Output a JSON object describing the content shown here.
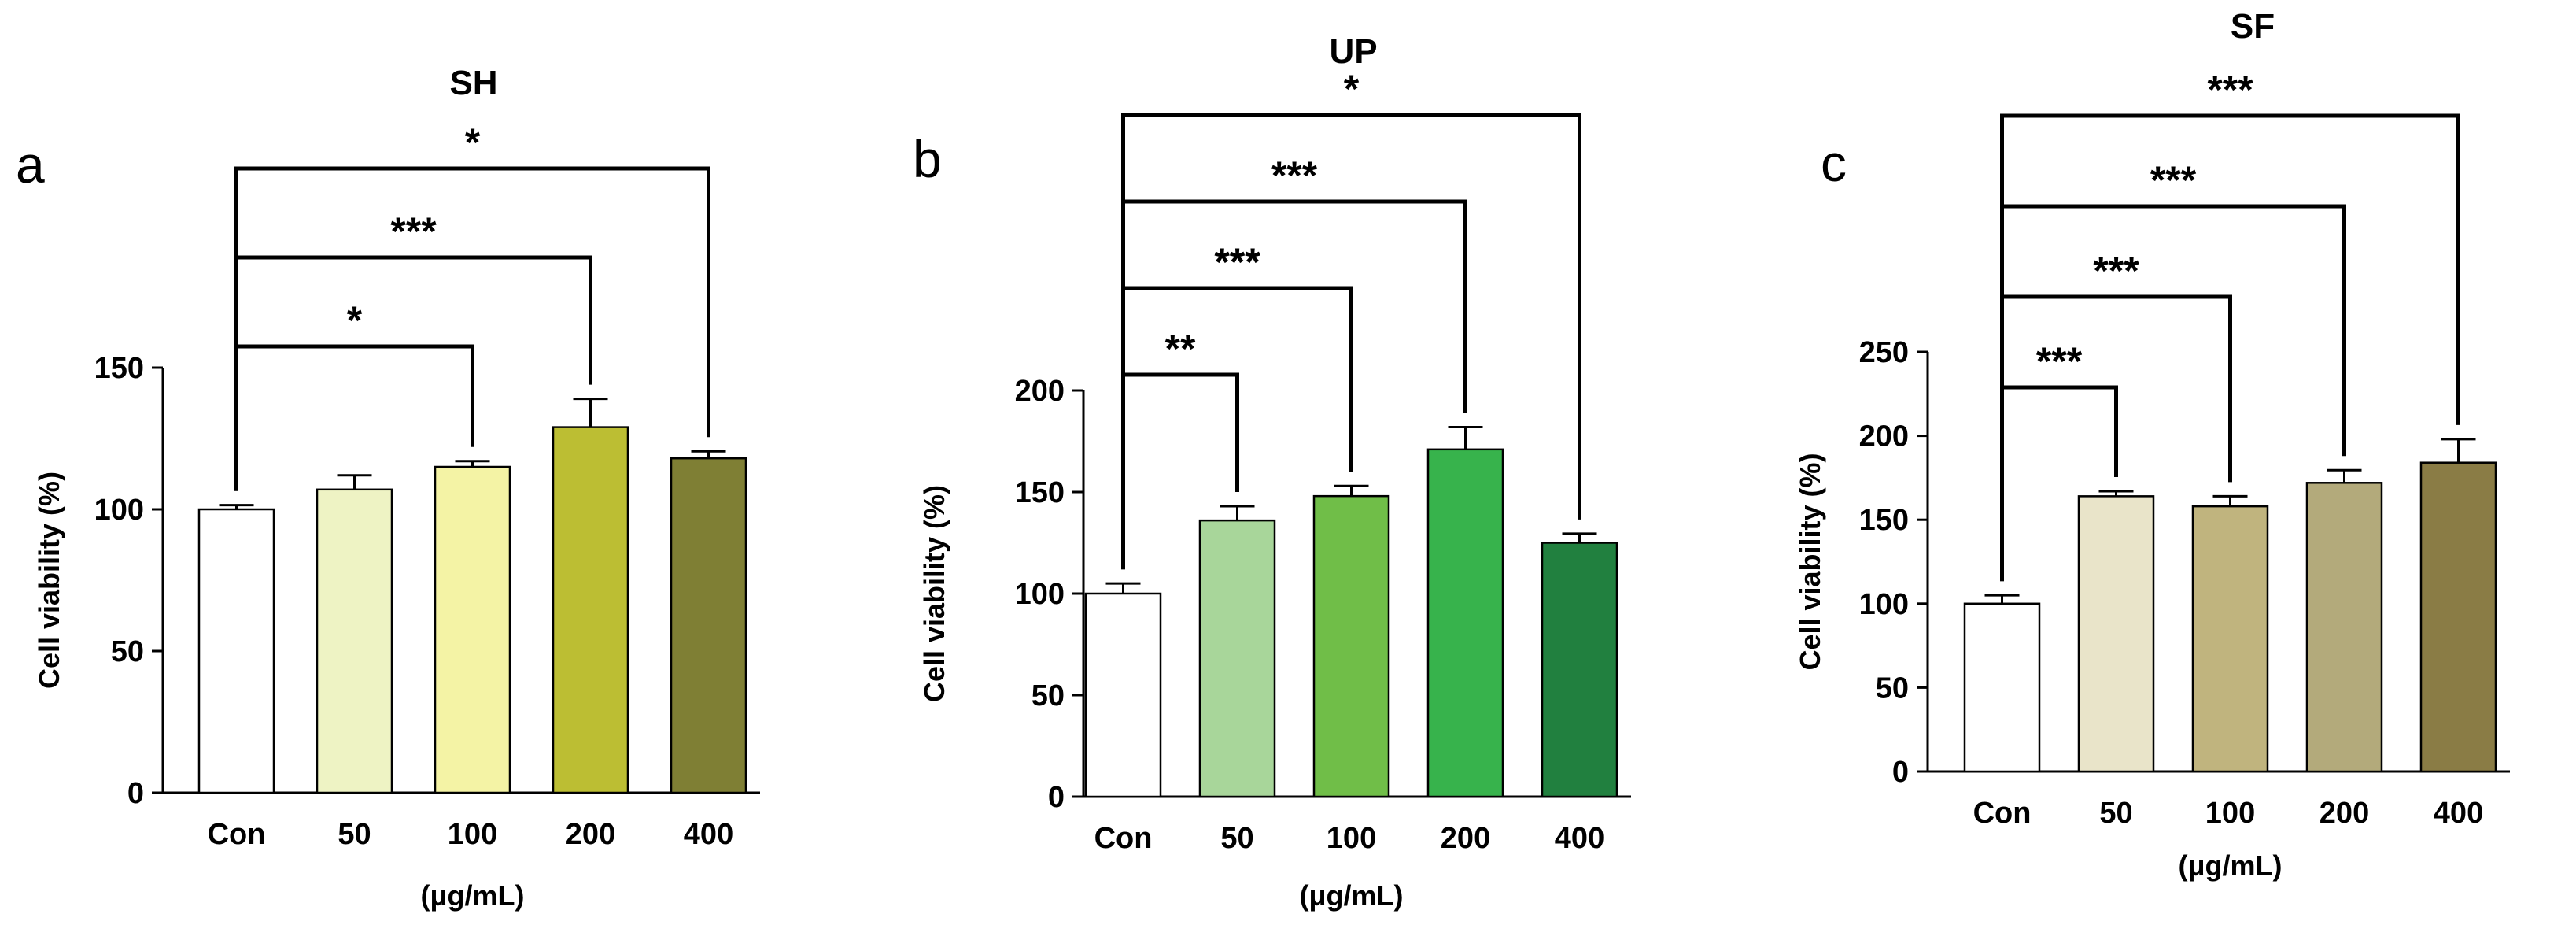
{
  "chart_data": [
    {
      "type": "bar",
      "panel": "a",
      "title": "SH",
      "ylabel": "Cell viability (%)",
      "xlabel": "(μg/mL)",
      "categories": [
        "Con",
        "50",
        "100",
        "200",
        "400"
      ],
      "values": [
        100,
        107,
        115,
        129,
        118
      ],
      "errors": [
        1.5,
        5,
        2,
        10,
        2.5
      ],
      "colors": [
        "#ffffff",
        "#eef3c4",
        "#f4f3a5",
        "#bcbe33",
        "#7f7f34"
      ],
      "ylim": [
        0,
        150
      ],
      "yticks": [
        0,
        50,
        100,
        150
      ],
      "comparisons": [
        {
          "from": "Con",
          "to": "100",
          "label": "*"
        },
        {
          "from": "Con",
          "to": "200",
          "label": "***"
        },
        {
          "from": "Con",
          "to": "400",
          "label": "*"
        }
      ]
    },
    {
      "type": "bar",
      "panel": "b",
      "title": "UP",
      "ylabel": "Cell viability (%)",
      "xlabel": "(μg/mL)",
      "categories": [
        "Con",
        "50",
        "100",
        "200",
        "400"
      ],
      "values": [
        100,
        136,
        148,
        171,
        125
      ],
      "errors": [
        5,
        7,
        5,
        11,
        4.5
      ],
      "colors": [
        "#ffffff",
        "#a8d69a",
        "#70be48",
        "#37b34c",
        "#21803f"
      ],
      "ylim": [
        0,
        200
      ],
      "yticks": [
        0,
        50,
        100,
        150,
        200
      ],
      "comparisons": [
        {
          "from": "Con",
          "to": "50",
          "label": "**"
        },
        {
          "from": "Con",
          "to": "100",
          "label": "***"
        },
        {
          "from": "Con",
          "to": "200",
          "label": "***"
        },
        {
          "from": "Con",
          "to": "400",
          "label": "*"
        }
      ]
    },
    {
      "type": "bar",
      "panel": "c",
      "title": "SF",
      "ylabel": "Cell viability (%)",
      "xlabel": "(μg/mL)",
      "categories": [
        "Con",
        "50",
        "100",
        "200",
        "400"
      ],
      "values": [
        100,
        164,
        158,
        172,
        184
      ],
      "errors": [
        5,
        3,
        6,
        7.5,
        14
      ],
      "colors": [
        "#ffffff",
        "#e9e4c9",
        "#c0b47e",
        "#b3aa7b",
        "#8a7c45"
      ],
      "ylim": [
        0,
        250
      ],
      "yticks": [
        0,
        50,
        100,
        150,
        200,
        250
      ],
      "comparisons": [
        {
          "from": "Con",
          "to": "50",
          "label": "***"
        },
        {
          "from": "Con",
          "to": "100",
          "label": "***"
        },
        {
          "from": "Con",
          "to": "200",
          "label": "***"
        },
        {
          "from": "Con",
          "to": "400",
          "label": "***"
        }
      ]
    }
  ]
}
